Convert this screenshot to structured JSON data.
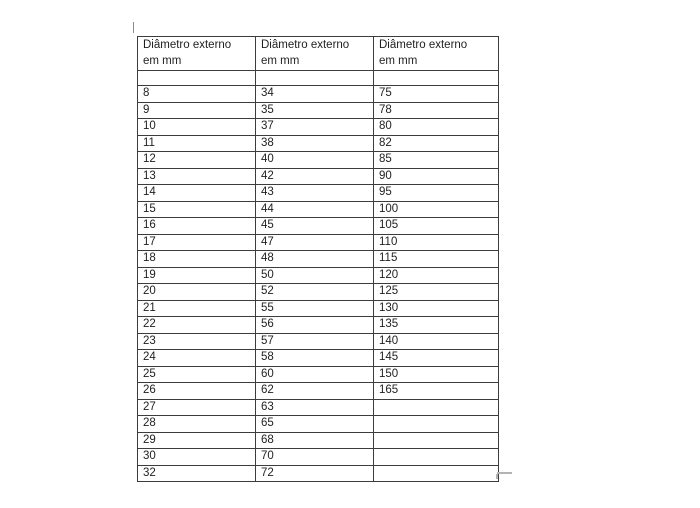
{
  "document": {
    "background": "#ffffff"
  },
  "table": {
    "headers": [
      {
        "line1": "Diâmetro externo",
        "line2": "em mm"
      },
      {
        "line1": "Diâmetro externo",
        "line2": "em mm"
      },
      {
        "line1": "Diâmetro externo",
        "line2": "em mm"
      }
    ],
    "spacer_row": [
      "",
      "",
      ""
    ],
    "rows": [
      [
        "8",
        "34",
        "75"
      ],
      [
        "9",
        "35",
        "78"
      ],
      [
        "10",
        "37",
        "80"
      ],
      [
        "11",
        "38",
        "82"
      ],
      [
        "12",
        "40",
        "85"
      ],
      [
        "13",
        "42",
        "90"
      ],
      [
        "14",
        "43",
        "95"
      ],
      [
        "15",
        "44",
        "100"
      ],
      [
        "16",
        "45",
        "105"
      ],
      [
        "17",
        "47",
        "110"
      ],
      [
        "18",
        "48",
        "115"
      ],
      [
        "19",
        "50",
        "120"
      ],
      [
        "20",
        "52",
        "125"
      ],
      [
        "21",
        "55",
        "130"
      ],
      [
        "22",
        "56",
        "135"
      ],
      [
        "23",
        "57",
        "140"
      ],
      [
        "24",
        "58",
        "145"
      ],
      [
        "25",
        "60",
        "150"
      ],
      [
        "26",
        "62",
        "165"
      ],
      [
        "27",
        "63",
        ""
      ],
      [
        "28",
        "65",
        ""
      ],
      [
        "29",
        "68",
        ""
      ],
      [
        "30",
        "70",
        ""
      ],
      [
        "32",
        "72",
        ""
      ]
    ]
  },
  "colors": {
    "table_border": "#3c3c3c",
    "text": "#1f1f1f",
    "resize_handle": "#b3b3b3",
    "caret": "#8a8a8a"
  }
}
